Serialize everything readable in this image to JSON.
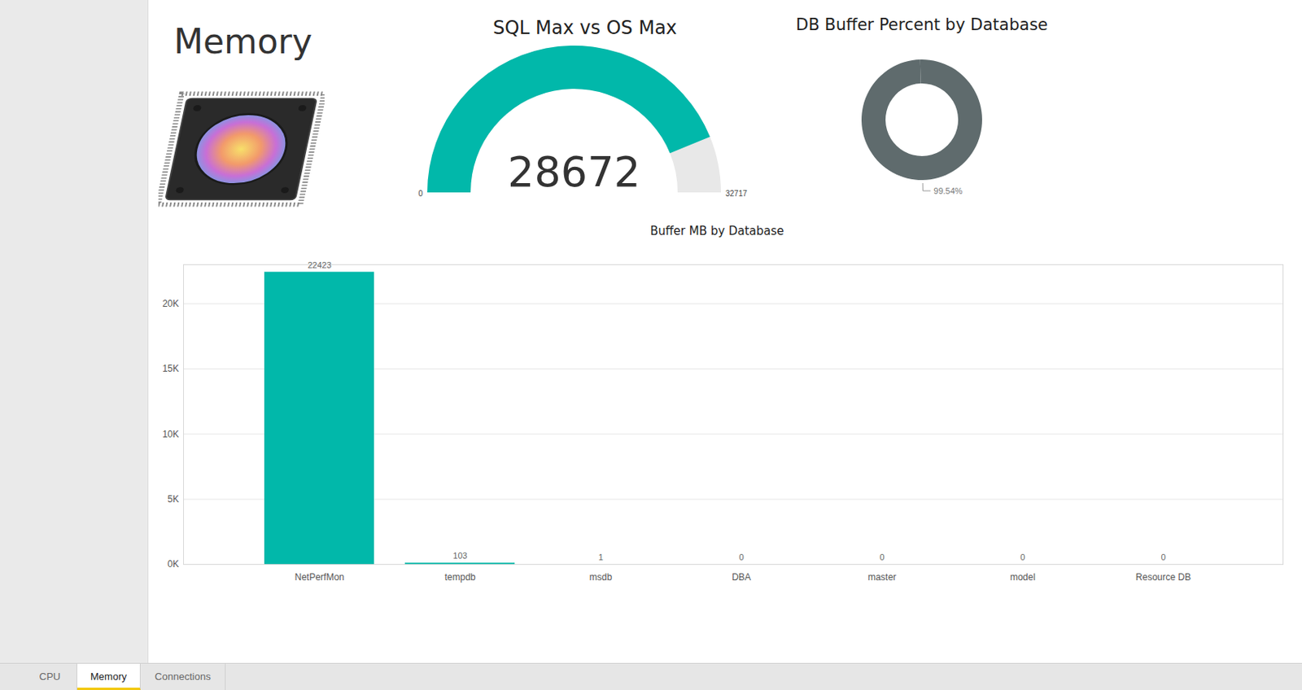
{
  "page": {
    "title": "Memory",
    "tabs": [
      "CPU",
      "Memory",
      "Connections"
    ],
    "active_tab": "Memory"
  },
  "chart_data": [
    {
      "type": "gauge",
      "title": "SQL Max vs OS Max",
      "values": [
        28672
      ],
      "ylim": [
        0,
        32717
      ],
      "yticks": [
        0,
        32717
      ],
      "color": "#01b8aa",
      "data_labels": true
    },
    {
      "type": "donut",
      "title": "DB Buffer Percent by Database",
      "values": [
        99.54,
        0.46
      ],
      "value_labels": [
        "99.54%",
        null
      ],
      "colors": [
        "#5f6b6d",
        "#5f6b6d"
      ],
      "data_labels": true
    },
    {
      "type": "bar",
      "title": "Buffer MB by Database",
      "categories": [
        "NetPerfMon",
        "tempdb",
        "msdb",
        "DBA",
        "master",
        "model",
        "Resource DB"
      ],
      "values": [
        22423,
        103,
        1,
        0,
        0,
        0,
        0
      ],
      "color": "#01b8aa",
      "ylim": [
        0,
        23000
      ],
      "yticks": [
        {
          "value": 0,
          "label": "0K"
        },
        {
          "value": 5000,
          "label": "5K"
        },
        {
          "value": 10000,
          "label": "10K"
        },
        {
          "value": 15000,
          "label": "15K"
        },
        {
          "value": 20000,
          "label": "20K"
        }
      ],
      "grid": true,
      "data_labels": true
    }
  ]
}
